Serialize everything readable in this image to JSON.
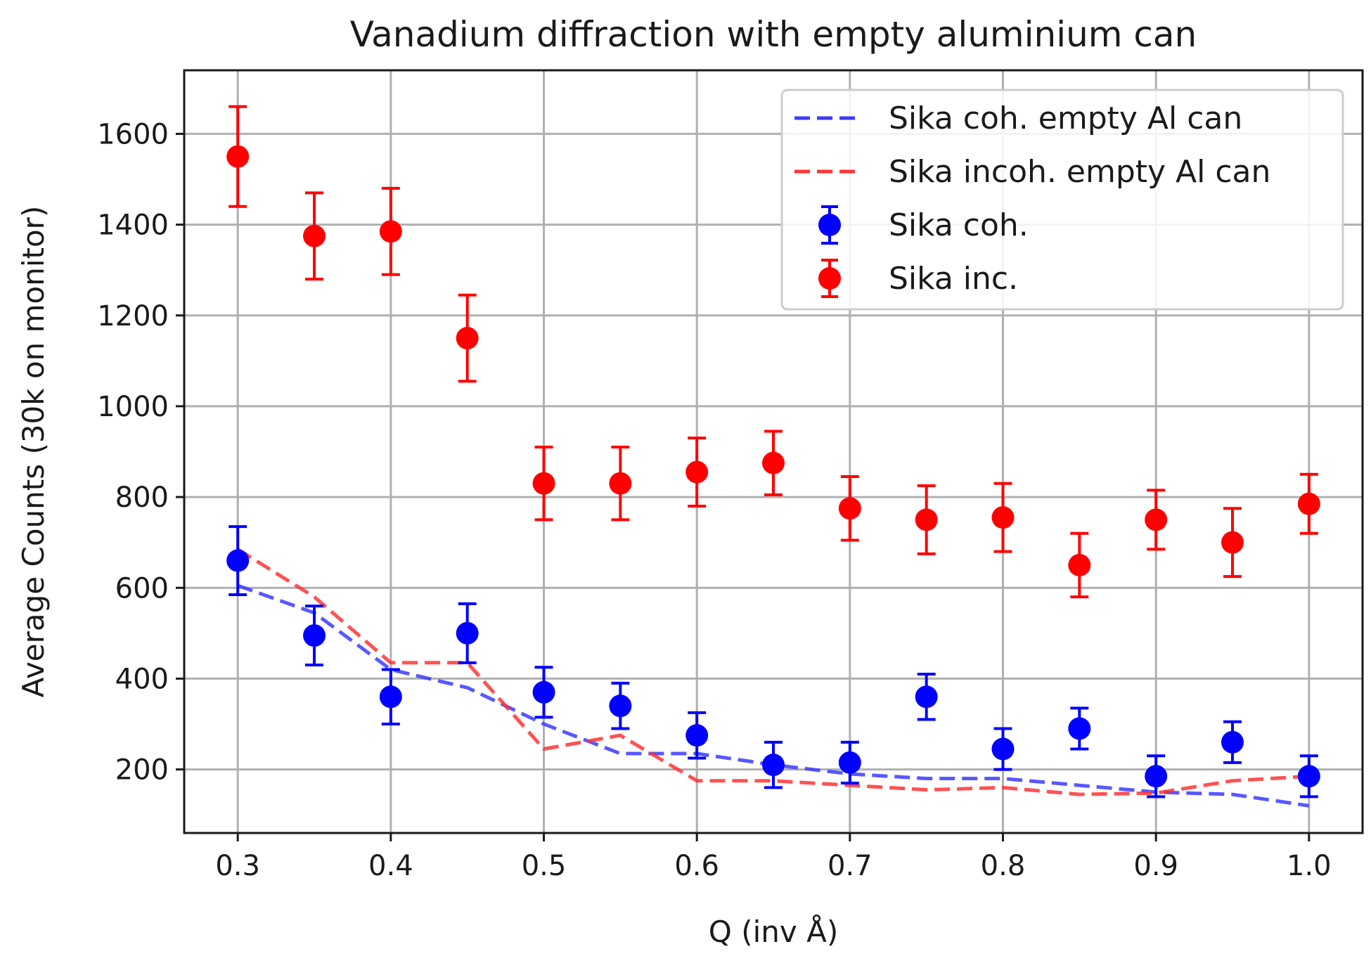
{
  "chart_data": {
    "type": "scatter",
    "title": "Vanadium diffraction with empty aluminium can",
    "xlabel": "Q (inv Å)",
    "ylabel": "Average Counts (30k on monitor)",
    "xlim": [
      0.265,
      1.035
    ],
    "ylim": [
      60,
      1740
    ],
    "xticks": [
      0.3,
      0.4,
      0.5,
      0.6,
      0.7,
      0.8,
      0.9,
      1.0
    ],
    "xtick_labels": [
      "0.3",
      "0.4",
      "0.5",
      "0.6",
      "0.7",
      "0.8",
      "0.9",
      "1.0"
    ],
    "yticks": [
      200,
      400,
      600,
      800,
      1000,
      1200,
      1400,
      1600
    ],
    "ytick_labels": [
      "200",
      "400",
      "600",
      "800",
      "1000",
      "1200",
      "1400",
      "1600"
    ],
    "grid": true,
    "legend_position": "top-right",
    "x": [
      0.3,
      0.35,
      0.4,
      0.45,
      0.5,
      0.55,
      0.6,
      0.65,
      0.7,
      0.75,
      0.8,
      0.85,
      0.9,
      0.95,
      1.0
    ],
    "series": [
      {
        "name": "Sika coh. empty Al can",
        "kind": "dashed-line",
        "color": "#3b3bff",
        "values": [
          605,
          545,
          420,
          380,
          300,
          235,
          235,
          210,
          190,
          180,
          180,
          165,
          150,
          145,
          120
        ]
      },
      {
        "name": "Sika incoh. empty Al can",
        "kind": "dashed-line",
        "color": "#ff3333",
        "values": [
          685,
          580,
          435,
          435,
          245,
          275,
          175,
          175,
          165,
          155,
          160,
          145,
          148,
          175,
          185
        ]
      },
      {
        "name": "Sika coh.",
        "kind": "errorbar-points",
        "color": "#0000ff",
        "values": [
          660,
          495,
          360,
          500,
          370,
          340,
          275,
          210,
          215,
          360,
          245,
          290,
          185,
          260,
          185
        ],
        "errors": [
          75,
          65,
          60,
          65,
          55,
          50,
          50,
          50,
          45,
          50,
          45,
          45,
          45,
          45,
          45
        ]
      },
      {
        "name": "Sika inc.",
        "kind": "errorbar-points",
        "color": "#ff0000",
        "values": [
          1550,
          1375,
          1385,
          1150,
          830,
          830,
          855,
          875,
          775,
          750,
          755,
          650,
          750,
          700,
          785
        ],
        "errors": [
          110,
          95,
          95,
          95,
          80,
          80,
          75,
          70,
          70,
          75,
          75,
          70,
          65,
          75,
          65
        ]
      }
    ]
  }
}
